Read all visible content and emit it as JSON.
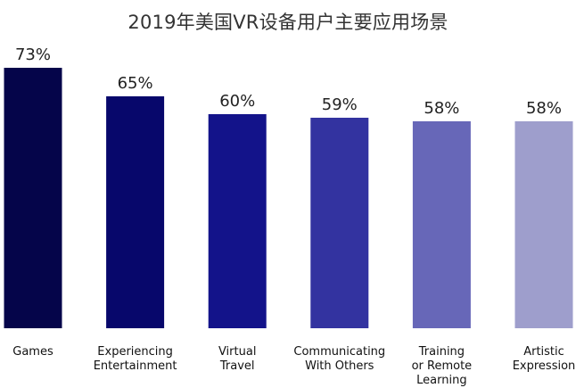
{
  "chart_data": {
    "type": "bar",
    "title": "2019年美国VR设备用户主要应用场景",
    "categories": [
      [
        "Games"
      ],
      [
        "Experiencing",
        "Entertainment"
      ],
      [
        "Virtual",
        "Travel"
      ],
      [
        "Communicating",
        "With Others"
      ],
      [
        "Training",
        "or Remote",
        "Learning"
      ],
      [
        "Artistic",
        "Expression"
      ]
    ],
    "values": [
      73,
      65,
      60,
      59,
      58,
      58
    ],
    "value_labels": [
      "73%",
      "65%",
      "60%",
      "59%",
      "58%",
      "58%"
    ],
    "colors": [
      "#05054a",
      "#07076b",
      "#13138a",
      "#3333a0",
      "#6767b8",
      "#9e9ecc"
    ],
    "ylim": [
      0,
      80
    ],
    "grid": false,
    "legend": "none"
  }
}
